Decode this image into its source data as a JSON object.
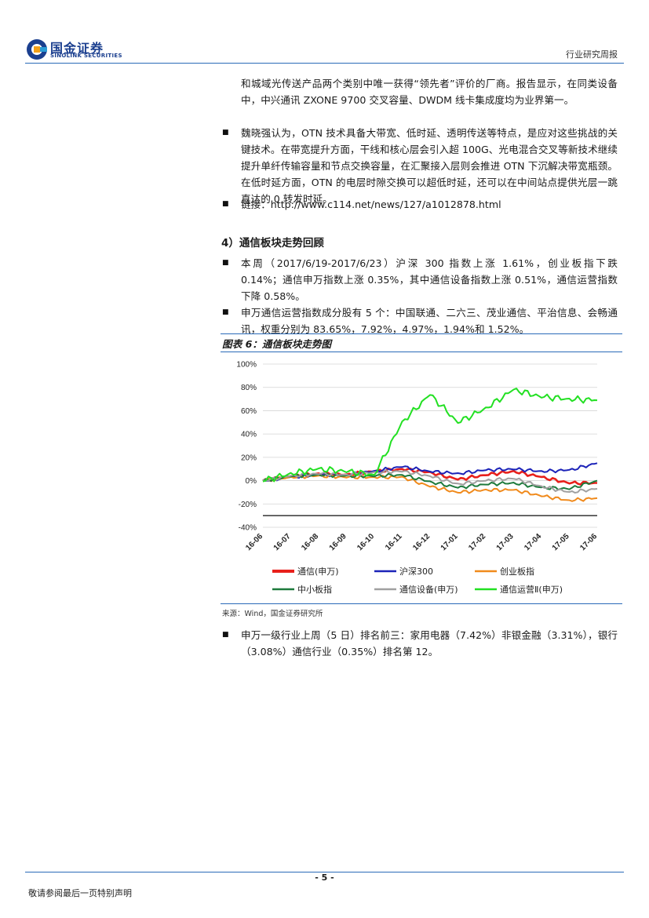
{
  "header": {
    "logo_cn": "国金证券",
    "logo_en": "SINOLINK SECURITIES",
    "report_type": "行业研究周报"
  },
  "paragraphs": [
    "和城域光传送产品两个类别中唯一获得“领先者”评价的厂商。报告显示，在同类设备中，中兴通讯 ZXONE 9700 交叉容量、DWDM 线卡集成度均为业界第一。",
    "魏晓强认为，OTN 技术具备大带宽、低时延、透明传送等特点，是应对这些挑战的关键技术。在带宽提升方面，干线和核心层会引入超 100G、光电混合交叉等新技术继续提升单纤传输容量和节点交换容量，在汇聚接入层则会推进 OTN 下沉解决带宽瓶颈。在低时延方面，OTN 的电层时隙交换可以超低时延，还可以在中间站点提供光层一跳直达的 0 转发时延。",
    "链接：http://www.c114.net/news/127/a1012878.html"
  ],
  "section_title": "4）通信板块走势回顾",
  "section_paragraphs": [
    "本周（2017/6/19-2017/6/23）沪深 300 指数上涨 1.61%，创业板指下跌 0.14%；通信申万指数上涨 0.35%，其中通信设备指数上涨 0.51%，通信运营指数下降 0.58%。",
    "申万通信运营指数成分股有 5 个：中国联通、二六三、茂业通信、平治信息、会畅通讯，权重分别为 83.65%，7.92%，4.97%，1.94%和 1.52%。"
  ],
  "figure": {
    "title": "图表 6：通信板块走势图",
    "source": "来源：Wind，国金证券研究所"
  },
  "final_paragraph": "申万一级行业上周（5 日）排名前三：家用电器（7.42%）非银金融（3.31%），银行（3.08%）通信行业（0.35%）排名第 12。",
  "footer": {
    "page_number": "- 5 -",
    "disclaimer": "敬请参阅最后一页特别声明"
  },
  "colors": {
    "accent_blue": "#2a6ab8",
    "brand_navy": "#1b3f8f"
  },
  "chart_data": {
    "type": "line",
    "x": [
      "16-06",
      "16-07",
      "16-08",
      "16-09",
      "16-10",
      "16-11",
      "16-12",
      "17-01",
      "17-02",
      "17-03",
      "17-04",
      "17-05",
      "17-06"
    ],
    "ylim": [
      -40,
      100
    ],
    "yticks": [
      "100%",
      "80%",
      "60%",
      "40%",
      "20%",
      "0%",
      "-20%",
      "-40%"
    ],
    "grid": true,
    "legend_position": "bottom",
    "series": [
      {
        "name": "通信(申万)",
        "color": "#e8201b",
        "values": [
          0,
          4,
          6,
          5,
          8,
          10,
          7,
          1,
          5,
          8,
          3,
          -2,
          -2
        ]
      },
      {
        "name": "沪深300",
        "color": "#1b22b8",
        "values": [
          0,
          3,
          5,
          5,
          8,
          12,
          8,
          6,
          9,
          10,
          8,
          9,
          15
        ]
      },
      {
        "name": "创业板指",
        "color": "#f08a1c",
        "values": [
          0,
          3,
          4,
          3,
          3,
          3,
          -5,
          -10,
          -8,
          -8,
          -13,
          -17,
          -15
        ]
      },
      {
        "name": "中小板指",
        "color": "#1d7a3c",
        "values": [
          0,
          4,
          5,
          4,
          4,
          5,
          -1,
          -6,
          -3,
          -2,
          -6,
          -7,
          0
        ]
      },
      {
        "name": "通信设备(申万)",
        "color": "#a0a0a0",
        "values": [
          0,
          4,
          6,
          5,
          7,
          8,
          4,
          -3,
          0,
          2,
          -5,
          -10,
          -7
        ]
      },
      {
        "name": "通信运营Ⅱ(申万)",
        "color": "#22e022",
        "values": [
          0,
          6,
          10,
          8,
          5,
          50,
          74,
          50,
          62,
          78,
          72,
          70,
          69
        ]
      }
    ],
    "reference_line": {
      "value": -30,
      "color": "#444444"
    }
  }
}
